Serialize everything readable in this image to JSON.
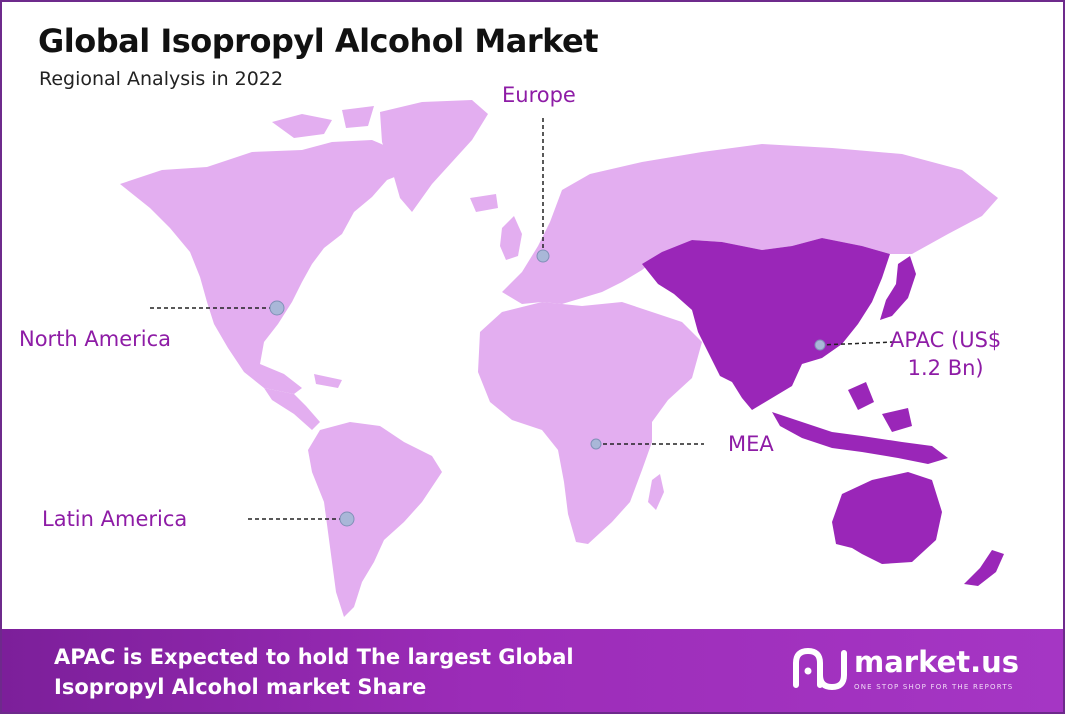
{
  "header": {
    "title": "Global Isopropyl Alcohol Market",
    "subtitle": "Regional Analysis in 2022"
  },
  "colors": {
    "land_light": "#e3aef0",
    "land_dark": "#9a26b8",
    "label": "#8e1ca6",
    "marker_fill": "#a9b7d8",
    "footer": "#9c2cb8",
    "border": "#6e2a8c"
  },
  "regions": [
    {
      "id": "north-america",
      "label": "North America",
      "highlighted": false
    },
    {
      "id": "europe",
      "label": "Europe",
      "highlighted": false
    },
    {
      "id": "apac",
      "label": "APAC (US$ 1.2 Bn)",
      "label_line1": "APAC (US$",
      "label_line2": "1.2 Bn)",
      "highlighted": true
    },
    {
      "id": "mea",
      "label": "MEA",
      "highlighted": false
    },
    {
      "id": "latin-america",
      "label": "Latin America",
      "highlighted": false
    }
  ],
  "footer": {
    "line1": "APAC is Expected to hold The largest Global",
    "line2": "Isopropyl Alcohol market Share",
    "logo_name": "market.us",
    "logo_tagline": "ONE STOP SHOP FOR THE REPORTS"
  }
}
